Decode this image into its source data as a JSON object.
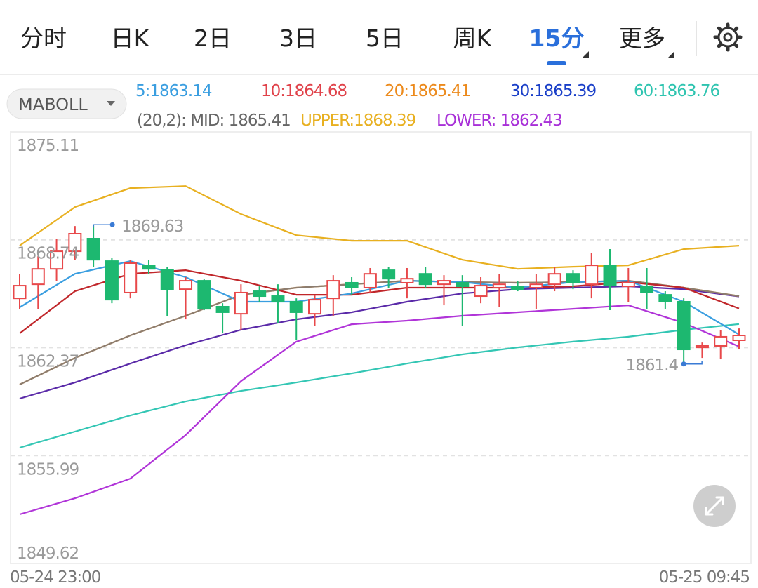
{
  "tabs": [
    {
      "label": "分时"
    },
    {
      "label": "日K"
    },
    {
      "label": "2日"
    },
    {
      "label": "3日"
    },
    {
      "label": "5日"
    },
    {
      "label": "周K"
    },
    {
      "label": "15分",
      "active": true,
      "dropdown": true
    },
    {
      "label": "更多",
      "dropdown": true
    }
  ],
  "indicator_selector": "MABOLL",
  "chart_data": {
    "type": "candlestick",
    "up_color": "#e8484a",
    "down_color": "#1db870",
    "ylim": [
      1849.62,
      1875.11
    ],
    "yticks": [
      1875.11,
      1868.74,
      1862.37,
      1855.99,
      1849.62
    ],
    "grid": true,
    "categories": [
      "05-24 23:00",
      null,
      null,
      null,
      null,
      null,
      null,
      null,
      null,
      null,
      null,
      null,
      null,
      null,
      null,
      null,
      null,
      null,
      null,
      null,
      null,
      null,
      null,
      null,
      null,
      null,
      null,
      null,
      null,
      null,
      null,
      null,
      null,
      null,
      null,
      null,
      null,
      null,
      null,
      "05-25 09:45"
    ],
    "candles": [
      {
        "open": 1865.28,
        "high": 1866.73,
        "low": 1864.66,
        "close": 1866.03
      },
      {
        "open": 1866.11,
        "high": 1867.77,
        "low": 1864.66,
        "close": 1867.02
      },
      {
        "open": 1867.02,
        "high": 1868.81,
        "low": 1866.32,
        "close": 1868.06
      },
      {
        "open": 1868.06,
        "high": 1869.55,
        "low": 1867.56,
        "close": 1869.1
      },
      {
        "open": 1868.81,
        "high": 1869.63,
        "low": 1867.15,
        "close": 1867.56
      },
      {
        "open": 1867.48,
        "high": 1867.65,
        "low": 1864.99,
        "close": 1865.2
      },
      {
        "open": 1865.62,
        "high": 1867.56,
        "low": 1865.28,
        "close": 1867.36
      },
      {
        "open": 1867.23,
        "high": 1867.56,
        "low": 1866.73,
        "close": 1867.02
      },
      {
        "open": 1866.98,
        "high": 1867.15,
        "low": 1864.25,
        "close": 1865.82
      },
      {
        "open": 1865.82,
        "high": 1866.53,
        "low": 1864.04,
        "close": 1866.32
      },
      {
        "open": 1866.32,
        "high": 1866.4,
        "low": 1864.58,
        "close": 1864.66
      },
      {
        "open": 1864.79,
        "high": 1864.99,
        "low": 1863.21,
        "close": 1864.46
      },
      {
        "open": 1864.37,
        "high": 1866.11,
        "low": 1863.42,
        "close": 1865.62
      },
      {
        "open": 1865.7,
        "high": 1865.99,
        "low": 1865.08,
        "close": 1865.41
      },
      {
        "open": 1865.41,
        "high": 1866.11,
        "low": 1863.83,
        "close": 1865.08
      },
      {
        "open": 1865.08,
        "high": 1865.28,
        "low": 1862.8,
        "close": 1864.46
      },
      {
        "open": 1864.37,
        "high": 1865.49,
        "low": 1863.63,
        "close": 1865.2
      },
      {
        "open": 1865.28,
        "high": 1866.65,
        "low": 1864.25,
        "close": 1866.32
      },
      {
        "open": 1866.2,
        "high": 1866.53,
        "low": 1865.49,
        "close": 1865.91
      },
      {
        "open": 1865.91,
        "high": 1867.07,
        "low": 1865.57,
        "close": 1866.73
      },
      {
        "open": 1866.94,
        "high": 1867.15,
        "low": 1865.91,
        "close": 1866.44
      },
      {
        "open": 1866.2,
        "high": 1867.07,
        "low": 1865.28,
        "close": 1866.44
      },
      {
        "open": 1866.73,
        "high": 1867.15,
        "low": 1865.91,
        "close": 1866.11
      },
      {
        "open": 1866.11,
        "high": 1866.65,
        "low": 1864.87,
        "close": 1866.32
      },
      {
        "open": 1866.2,
        "high": 1866.65,
        "low": 1863.63,
        "close": 1865.99
      },
      {
        "open": 1865.41,
        "high": 1866.53,
        "low": 1864.99,
        "close": 1866.03
      },
      {
        "open": 1865.91,
        "high": 1866.73,
        "low": 1864.75,
        "close": 1866.11
      },
      {
        "open": 1865.99,
        "high": 1866.32,
        "low": 1865.7,
        "close": 1865.82
      },
      {
        "open": 1865.91,
        "high": 1866.73,
        "low": 1864.66,
        "close": 1866.11
      },
      {
        "open": 1866.11,
        "high": 1867.15,
        "low": 1865.7,
        "close": 1866.73
      },
      {
        "open": 1866.73,
        "high": 1866.94,
        "low": 1865.82,
        "close": 1866.24
      },
      {
        "open": 1866.11,
        "high": 1867.98,
        "low": 1865.28,
        "close": 1867.23
      },
      {
        "open": 1867.23,
        "high": 1868.19,
        "low": 1864.58,
        "close": 1866.03
      },
      {
        "open": 1865.99,
        "high": 1867.07,
        "low": 1865.08,
        "close": 1866.2
      },
      {
        "open": 1865.99,
        "high": 1867.07,
        "low": 1864.66,
        "close": 1865.62
      },
      {
        "open": 1865.49,
        "high": 1865.7,
        "low": 1864.66,
        "close": 1865.08
      },
      {
        "open": 1865.08,
        "high": 1865.28,
        "low": 1861.4,
        "close": 1862.26
      },
      {
        "open": 1862.38,
        "high": 1862.67,
        "low": 1861.76,
        "close": 1862.47
      },
      {
        "open": 1862.47,
        "high": 1863.42,
        "low": 1861.68,
        "close": 1863.01
      },
      {
        "open": 1862.8,
        "high": 1863.5,
        "low": 1862.26,
        "close": 1863.09
      }
    ],
    "max_marker": {
      "index": 4,
      "value": 1869.63
    },
    "min_marker": {
      "index": 36,
      "value": 1861.4
    },
    "x": [
      0,
      3,
      6,
      9,
      12,
      15,
      18,
      21,
      24,
      27,
      30,
      33,
      36,
      39
    ],
    "series": [
      {
        "name": "60:1863.76",
        "group": "ma",
        "color": "#2ec4b0",
        "line_color": "#33c6b4",
        "values": [
          1856.46,
          1857.41,
          1858.36,
          1859.19,
          1859.81,
          1860.31,
          1860.85,
          1861.43,
          1861.97,
          1862.38,
          1862.72,
          1863.01,
          1863.42,
          1863.76
        ]
      },
      {
        "name": "30:1865.39",
        "group": "ma",
        "color": "#1a3fc8",
        "line_color": "#5a2aa8",
        "values": [
          1859.36,
          1860.31,
          1861.43,
          1862.51,
          1863.42,
          1864.04,
          1864.46,
          1865.08,
          1865.57,
          1865.82,
          1865.91,
          1865.99,
          1865.82,
          1865.39
        ]
      },
      {
        "name": "LOWER: 1862.43",
        "group": "boll",
        "color": "#a830d8",
        "line_color": "#b034d8",
        "values": [
          1852.52,
          1853.47,
          1854.63,
          1857.2,
          1860.39,
          1862.72,
          1863.75,
          1863.96,
          1864.25,
          1864.46,
          1864.66,
          1864.87,
          1863.83,
          1862.43
        ]
      },
      {
        "name": "UPPER:1868.39",
        "group": "boll",
        "color": "#e8b020",
        "line_color": "#e8b020",
        "values": [
          1868.39,
          1870.67,
          1871.79,
          1871.91,
          1870.26,
          1869.01,
          1868.68,
          1868.68,
          1867.56,
          1867.02,
          1867.15,
          1867.23,
          1868.19,
          1868.39
        ]
      },
      {
        "name": "20:1865.41",
        "group": "ma",
        "color": "#ec8a1c",
        "line_color": "#ec8a1c",
        "values": [
          1860.19,
          1861.76,
          1863.09,
          1864.25,
          1865.49,
          1865.91,
          1866.11,
          1866.32,
          1866.24,
          1866.2,
          1866.24,
          1866.32,
          1865.91,
          1865.41
        ]
      },
      {
        "name": "(20,2): MID: 1865.41",
        "group": "boll",
        "color": "#666666",
        "line_color": "#8c7d70",
        "values": [
          1860.19,
          1861.76,
          1863.09,
          1864.25,
          1865.49,
          1865.91,
          1866.11,
          1866.32,
          1866.24,
          1866.2,
          1866.24,
          1866.32,
          1865.91,
          1865.41
        ]
      },
      {
        "name": "10:1864.68",
        "group": "ma",
        "color": "#e0424a",
        "line_color": "#c0262a",
        "values": [
          1863.21,
          1865.7,
          1866.73,
          1866.94,
          1866.32,
          1865.49,
          1865.49,
          1865.91,
          1865.91,
          1865.91,
          1865.99,
          1866.24,
          1865.91,
          1864.68
        ]
      },
      {
        "name": "5:1863.14",
        "group": "ma",
        "color": "#3a9ee0",
        "line_color": "#3a9ee0",
        "values": [
          1864.75,
          1866.73,
          1867.48,
          1866.53,
          1865.08,
          1865.08,
          1865.57,
          1866.32,
          1866.24,
          1865.91,
          1866.24,
          1866.32,
          1865.08,
          1863.14
        ]
      }
    ]
  }
}
